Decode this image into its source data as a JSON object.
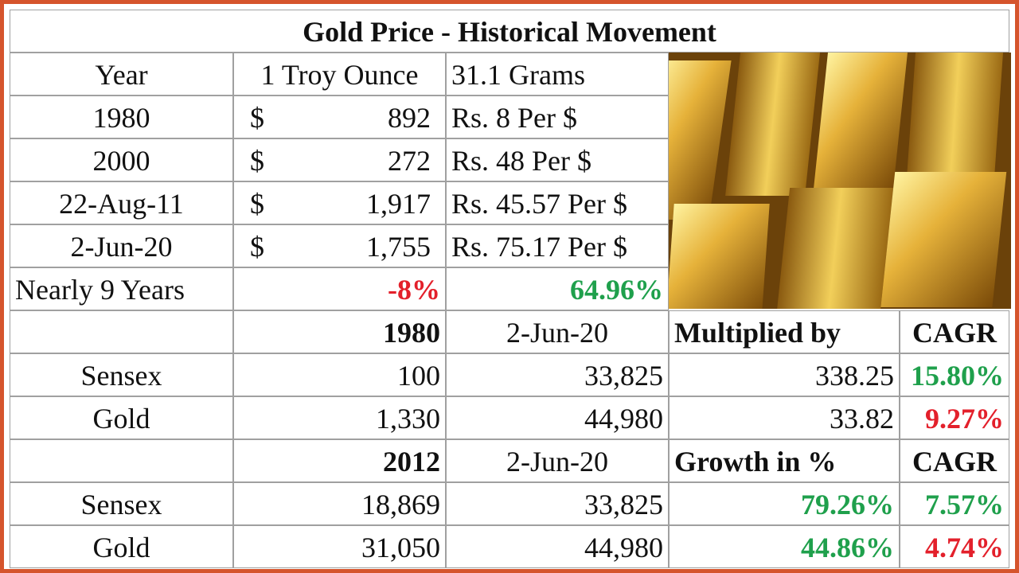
{
  "title": "Gold Price - Historical Movement",
  "price_table": {
    "header": [
      "Year",
      "1 Troy Ounce",
      "31.1 Grams"
    ],
    "rows": [
      {
        "year": "1980",
        "currency": "$",
        "ounce": "892",
        "rate": "Rs. 8 Per $"
      },
      {
        "year": "2000",
        "currency": "$",
        "ounce": "272",
        "rate": "Rs. 48 Per $"
      },
      {
        "year": "22-Aug-11",
        "currency": "$",
        "ounce": "1,917",
        "rate": "Rs. 45.57 Per $"
      },
      {
        "year": "2-Jun-20",
        "currency": "$",
        "ounce": "1,755",
        "rate": "Rs. 75.17 Per $"
      }
    ],
    "summary": {
      "label": "Nearly 9 Years",
      "ounce_change": "-8%",
      "rate_change": "64.96%"
    }
  },
  "comparison_1980": {
    "header": [
      "1980",
      "2-Jun-20",
      "Multiplied by",
      "CAGR"
    ],
    "rows": [
      [
        "Sensex",
        "100",
        "33,825",
        "338.25",
        "15.80%"
      ],
      [
        "Gold",
        "1,330",
        "44,980",
        "33.82",
        "9.27%"
      ]
    ]
  },
  "comparison_2012": {
    "header": [
      "2012",
      "2-Jun-20",
      "Growth in %",
      "CAGR"
    ],
    "rows": [
      [
        "Sensex",
        "18,869",
        "33,825",
        "79.26%",
        "7.57%"
      ],
      [
        "Gold",
        "31,050",
        "44,980",
        "44.86%",
        "4.74%"
      ]
    ]
  }
}
